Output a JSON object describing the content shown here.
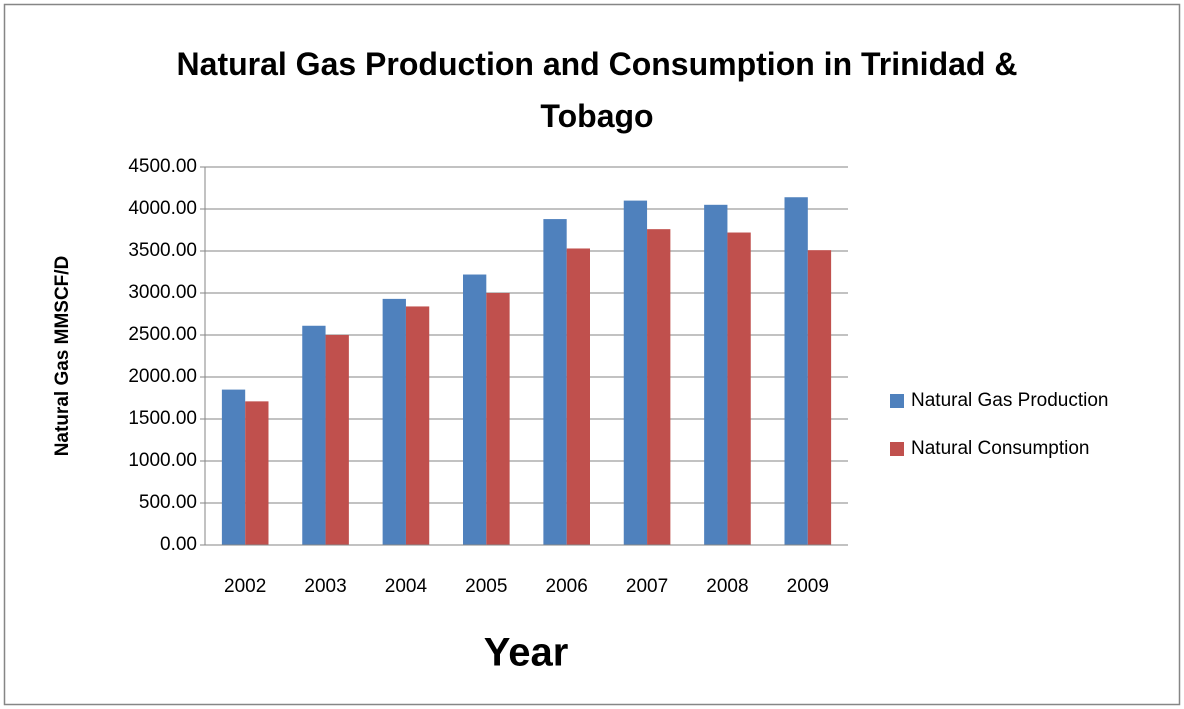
{
  "chart_data": {
    "type": "bar",
    "title": "Natural Gas Production and Consumption in Trinidad & Tobago",
    "x_label": "Year",
    "y_label": "Natural Gas MMSCF/D",
    "categories": [
      "2002",
      "2003",
      "2004",
      "2005",
      "2006",
      "2007",
      "2008",
      "2009"
    ],
    "series": [
      {
        "name": "Natural Gas Production",
        "color": "#4f81bd",
        "values": [
          1850,
          2610,
          2930,
          3220,
          3880,
          4100,
          4050,
          4140
        ]
      },
      {
        "name": "Natural Consumption",
        "color": "#c0504d",
        "values": [
          1710,
          2500,
          2840,
          3000,
          3530,
          3760,
          3720,
          3510
        ]
      }
    ],
    "ylim": [
      0,
      4500
    ],
    "yticks": [
      {
        "value": 0,
        "label": "0.00"
      },
      {
        "value": 500,
        "label": "500.00"
      },
      {
        "value": 1000,
        "label": "1000.00"
      },
      {
        "value": 1500,
        "label": "1500.00"
      },
      {
        "value": 2000,
        "label": "2000.00"
      },
      {
        "value": 2500,
        "label": "2500.00"
      },
      {
        "value": 3000,
        "label": "3000.00"
      },
      {
        "value": 3500,
        "label": "3500.00"
      },
      {
        "value": 4000,
        "label": "4000.00"
      },
      {
        "value": 4500,
        "label": "4500.00"
      }
    ],
    "grid": true,
    "legend": "right"
  }
}
